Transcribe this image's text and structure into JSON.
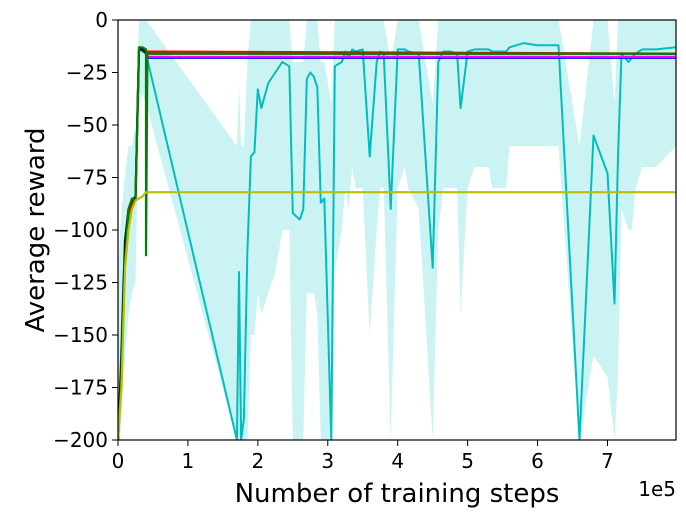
{
  "chart_data": {
    "type": "line",
    "title": "",
    "xlabel": "Number of training steps",
    "ylabel": "Average reward",
    "x_offset_label": "1e5",
    "xlim": [
      0,
      7.98
    ],
    "ylim": [
      -200,
      0
    ],
    "x_ticks": [
      0,
      1,
      2,
      3,
      4,
      5,
      6,
      7
    ],
    "y_ticks": [
      0,
      -25,
      -50,
      -75,
      -100,
      -125,
      -150,
      -175,
      -200
    ],
    "x_tick_labels": [
      "0",
      "1",
      "2",
      "3",
      "4",
      "5",
      "6",
      "7"
    ],
    "y_tick_labels": [
      "0",
      "−25",
      "−50",
      "−75",
      "−100",
      "−125",
      "−150",
      "−175",
      "−200"
    ],
    "grid": false,
    "legend": "none",
    "series": [
      {
        "color": "#00bebe",
        "band_color": "#8fe5e5",
        "x": [
          0,
          0.03,
          0.08,
          0.15,
          0.2,
          0.25,
          0.3,
          0.35,
          0.4,
          1.7,
          1.73,
          1.76,
          1.8,
          1.85,
          1.9,
          1.95,
          2.0,
          2.05,
          2.15,
          2.25,
          2.35,
          2.45,
          2.5,
          2.6,
          2.65,
          2.7,
          2.75,
          2.8,
          2.85,
          2.9,
          2.95,
          3.05,
          3.1,
          3.2,
          3.25,
          3.3,
          3.35,
          3.4,
          3.5,
          3.6,
          3.7,
          3.75,
          3.8,
          3.9,
          4.0,
          4.1,
          4.15,
          4.3,
          4.5,
          4.58,
          4.65,
          4.75,
          4.85,
          4.9,
          5.0,
          5.1,
          5.2,
          5.3,
          5.35,
          5.4,
          5.45,
          5.55,
          5.6,
          5.7,
          5.8,
          6.0,
          6.3,
          6.6,
          6.8,
          7.0,
          7.1,
          7.15,
          7.2,
          7.3,
          7.35,
          7.4,
          7.5,
          7.6,
          7.7,
          7.98
        ],
        "mean": [
          -200,
          -175,
          -120,
          -95,
          -88,
          -86,
          -14,
          -15,
          -16,
          -200,
          -120,
          -200,
          -190,
          -110,
          -65,
          -63,
          -33,
          -42,
          -30,
          -25,
          -20,
          -22,
          -92,
          -95,
          -90,
          -28,
          -25,
          -27,
          -32,
          -87,
          -85,
          -200,
          -22,
          -20,
          -15,
          -18,
          -14,
          -15,
          -14,
          -65,
          -20,
          -15,
          -16,
          -90,
          -14,
          -14,
          -15,
          -16,
          -118,
          -20,
          -15,
          -15,
          -16,
          -42,
          -15,
          -14,
          -14,
          -14,
          -15,
          -15,
          -15,
          -15,
          -13,
          -12,
          -11,
          -12,
          -12,
          -200,
          -55,
          -73,
          -135,
          -65,
          -16,
          -20,
          -18,
          -16,
          -14,
          -14,
          -14,
          -13
        ],
        "lower": [
          -200,
          -200,
          -170,
          -140,
          -130,
          -125,
          -40,
          -35,
          -40,
          -200,
          -200,
          -200,
          -200,
          -200,
          -150,
          -150,
          -130,
          -140,
          -130,
          -120,
          -100,
          -100,
          -200,
          -200,
          -200,
          -130,
          -130,
          -130,
          -140,
          -200,
          -200,
          -200,
          -120,
          -100,
          -80,
          -90,
          -70,
          -80,
          -80,
          -150,
          -100,
          -80,
          -80,
          -200,
          -80,
          -70,
          -80,
          -90,
          -200,
          -100,
          -80,
          -80,
          -80,
          -140,
          -80,
          -70,
          -70,
          -70,
          -80,
          -80,
          -80,
          -80,
          -60,
          -60,
          -60,
          -60,
          -60,
          -200,
          -160,
          -170,
          -200,
          -170,
          -90,
          -100,
          -100,
          -80,
          -70,
          -70,
          -70,
          -60
        ],
        "upper": [
          -120,
          -100,
          -80,
          -60,
          -60,
          -50,
          0,
          0,
          0,
          -60,
          -30,
          -60,
          -60,
          -20,
          0,
          0,
          0,
          0,
          0,
          0,
          0,
          0,
          -20,
          -20,
          -20,
          0,
          0,
          0,
          0,
          -20,
          -20,
          -40,
          0,
          0,
          0,
          0,
          0,
          0,
          0,
          0,
          0,
          0,
          0,
          -20,
          0,
          0,
          0,
          0,
          -40,
          0,
          0,
          0,
          0,
          0,
          0,
          0,
          0,
          0,
          0,
          0,
          0,
          0,
          0,
          0,
          0,
          0,
          0,
          -60,
          0,
          0,
          -40,
          0,
          0,
          0,
          0,
          0,
          0,
          0,
          0,
          0
        ]
      },
      {
        "color": "#0000ff",
        "x": [
          0.4,
          7.98
        ],
        "mean": [
          -18,
          -18
        ]
      },
      {
        "color": "#ff00ff",
        "x": [
          0.4,
          7.98
        ],
        "mean": [
          -17.5,
          -17.5
        ]
      },
      {
        "color": "#ff0000",
        "x": [
          0,
          0.05,
          0.1,
          0.15,
          0.2,
          0.25,
          0.3,
          0.35,
          0.4,
          7.98
        ],
        "mean": [
          -200,
          -165,
          -110,
          -92,
          -88,
          -85,
          -14,
          -14,
          -15,
          -16
        ]
      },
      {
        "color": "#111111",
        "x": [
          0,
          0.05,
          0.1,
          0.15,
          0.2,
          0.25,
          0.3,
          0.35,
          0.4,
          7.98
        ],
        "mean": [
          -200,
          -160,
          -105,
          -90,
          -86,
          -84,
          -14,
          -14,
          -16,
          -16
        ]
      },
      {
        "color": "#008000",
        "x": [
          0,
          0.05,
          0.1,
          0.15,
          0.2,
          0.25,
          0.3,
          0.35,
          0.4,
          0.4,
          0.42,
          7.98
        ],
        "mean": [
          -200,
          -170,
          -115,
          -90,
          -85,
          -86,
          -13,
          -13,
          -14,
          -112,
          -16,
          -16
        ]
      },
      {
        "color": "#bebe00",
        "x": [
          0,
          0.05,
          0.1,
          0.15,
          0.2,
          0.25,
          0.3,
          0.35,
          0.4,
          7.98
        ],
        "mean": [
          -200,
          -175,
          -118,
          -100,
          -90,
          -86,
          -85,
          -84,
          -82,
          -82
        ]
      }
    ]
  }
}
